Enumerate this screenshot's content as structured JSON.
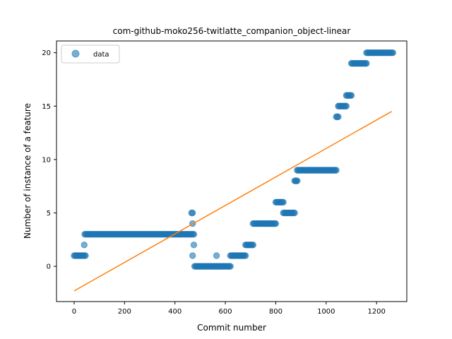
{
  "chart_data": {
    "type": "scatter",
    "title": "com-github-moko256-twitlatte_companion_object-linear",
    "xlabel": "Commit number",
    "ylabel": "Number of instance of a feature",
    "xlim": [
      -70,
      1320
    ],
    "ylim": [
      -3.3,
      21.1
    ],
    "xticks": [
      0,
      200,
      400,
      600,
      800,
      1000,
      1200
    ],
    "yticks": [
      0,
      5,
      10,
      15,
      20
    ],
    "grid": false,
    "legend": {
      "placement": "top-left",
      "entries": [
        "data"
      ]
    },
    "colors": {
      "data": "#1f77b4",
      "fit": "#ff7f0e"
    },
    "series": [
      {
        "name": "data",
        "kind": "points",
        "segments": [
          {
            "x": [
              0,
              45
            ],
            "y": 1
          },
          {
            "x": [
              40,
              40
            ],
            "y": 2
          },
          {
            "x": [
              42,
              475
            ],
            "y": 3
          },
          {
            "x": [
              466,
              466
            ],
            "y": 5
          },
          {
            "x": [
              470,
              470
            ],
            "y": 5
          },
          {
            "x": [
              470,
              470
            ],
            "y": 4
          },
          {
            "x": [
              470,
              470
            ],
            "y": 1
          },
          {
            "x": [
              475,
              475
            ],
            "y": 2
          },
          {
            "x": [
              478,
              620
            ],
            "y": 0
          },
          {
            "x": [
              565,
              565
            ],
            "y": 1
          },
          {
            "x": [
              620,
              680
            ],
            "y": 1
          },
          {
            "x": [
              680,
              710
            ],
            "y": 2
          },
          {
            "x": [
              710,
              800
            ],
            "y": 4
          },
          {
            "x": [
              800,
              830
            ],
            "y": 6
          },
          {
            "x": [
              830,
              875
            ],
            "y": 5
          },
          {
            "x": [
              875,
              885
            ],
            "y": 8
          },
          {
            "x": [
              885,
              1040
            ],
            "y": 9
          },
          {
            "x": [
              1040,
              1048
            ],
            "y": 14
          },
          {
            "x": [
              1048,
              1080
            ],
            "y": 15
          },
          {
            "x": [
              1080,
              1100
            ],
            "y": 16
          },
          {
            "x": [
              1100,
              1160
            ],
            "y": 19
          },
          {
            "x": [
              1160,
              1265
            ],
            "y": 20
          }
        ]
      },
      {
        "kind": "line",
        "x": [
          0,
          1260
        ],
        "y": [
          -2.3,
          14.5
        ]
      }
    ]
  }
}
